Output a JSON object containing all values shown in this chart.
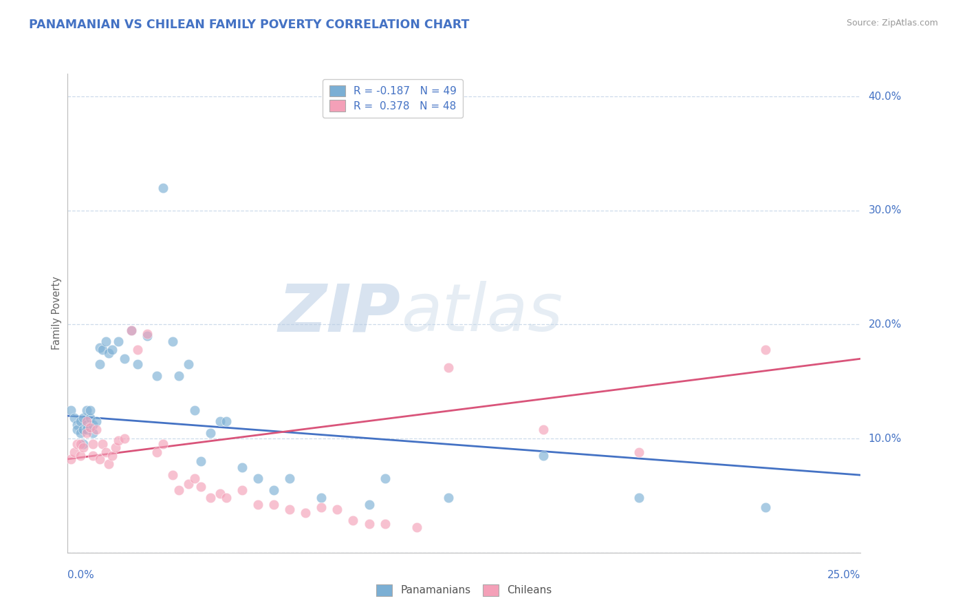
{
  "title": "PANAMANIAN VS CHILEAN FAMILY POVERTY CORRELATION CHART",
  "source": "Source: ZipAtlas.com",
  "ylabel": "Family Poverty",
  "xlim": [
    0.0,
    0.25
  ],
  "ylim": [
    0.0,
    0.42
  ],
  "yticks": [
    0.0,
    0.1,
    0.2,
    0.3,
    0.4
  ],
  "ytick_labels": [
    "",
    "10.0%",
    "20.0%",
    "30.0%",
    "40.0%"
  ],
  "xtick_labels": [
    "0.0%",
    "25.0%"
  ],
  "panamanian_color": "#7bafd4",
  "chilean_color": "#f4a0b8",
  "panamanian_trend_color": "#4472c4",
  "chilean_trend_color": "#d9547a",
  "title_color": "#4472c4",
  "source_color": "#999999",
  "label_color": "#4472c4",
  "grid_color": "#c8d8e8",
  "pan_trend_x0": 0.0,
  "pan_trend_y0": 0.12,
  "pan_trend_x1": 0.25,
  "pan_trend_y1": 0.068,
  "chi_trend_x0": 0.0,
  "chi_trend_y0": 0.082,
  "chi_trend_x1": 0.25,
  "chi_trend_y1": 0.17,
  "pan_x": [
    0.001,
    0.002,
    0.003,
    0.003,
    0.004,
    0.004,
    0.005,
    0.005,
    0.005,
    0.006,
    0.006,
    0.006,
    0.007,
    0.007,
    0.008,
    0.008,
    0.009,
    0.01,
    0.01,
    0.011,
    0.012,
    0.013,
    0.014,
    0.016,
    0.018,
    0.02,
    0.022,
    0.025,
    0.028,
    0.03,
    0.033,
    0.035,
    0.038,
    0.04,
    0.042,
    0.045,
    0.048,
    0.05,
    0.055,
    0.06,
    0.065,
    0.07,
    0.08,
    0.095,
    0.1,
    0.12,
    0.15,
    0.18,
    0.22
  ],
  "pan_y": [
    0.125,
    0.118,
    0.112,
    0.108,
    0.115,
    0.105,
    0.118,
    0.108,
    0.095,
    0.125,
    0.112,
    0.108,
    0.118,
    0.125,
    0.112,
    0.105,
    0.115,
    0.18,
    0.165,
    0.178,
    0.185,
    0.175,
    0.178,
    0.185,
    0.17,
    0.195,
    0.165,
    0.19,
    0.155,
    0.32,
    0.185,
    0.155,
    0.165,
    0.125,
    0.08,
    0.105,
    0.115,
    0.115,
    0.075,
    0.065,
    0.055,
    0.065,
    0.048,
    0.042,
    0.065,
    0.048,
    0.085,
    0.048,
    0.04
  ],
  "chi_x": [
    0.001,
    0.002,
    0.003,
    0.004,
    0.004,
    0.005,
    0.006,
    0.006,
    0.007,
    0.008,
    0.008,
    0.009,
    0.01,
    0.011,
    0.012,
    0.013,
    0.014,
    0.015,
    0.016,
    0.018,
    0.02,
    0.022,
    0.025,
    0.028,
    0.03,
    0.033,
    0.035,
    0.038,
    0.04,
    0.042,
    0.045,
    0.048,
    0.05,
    0.055,
    0.06,
    0.065,
    0.07,
    0.075,
    0.08,
    0.085,
    0.09,
    0.095,
    0.1,
    0.11,
    0.12,
    0.15,
    0.18,
    0.22
  ],
  "chi_y": [
    0.082,
    0.088,
    0.095,
    0.085,
    0.095,
    0.092,
    0.115,
    0.105,
    0.11,
    0.085,
    0.095,
    0.108,
    0.082,
    0.095,
    0.088,
    0.078,
    0.085,
    0.092,
    0.098,
    0.1,
    0.195,
    0.178,
    0.192,
    0.088,
    0.095,
    0.068,
    0.055,
    0.06,
    0.065,
    0.058,
    0.048,
    0.052,
    0.048,
    0.055,
    0.042,
    0.042,
    0.038,
    0.035,
    0.04,
    0.038,
    0.028,
    0.025,
    0.025,
    0.022,
    0.162,
    0.108,
    0.088,
    0.178
  ],
  "legend1_label": "R = -0.187   N = 49",
  "legend2_label": "R =  0.378   N = 48",
  "bottom_label1": "Panamanians",
  "bottom_label2": "Chileans",
  "watermark_zip": "ZIP",
  "watermark_atlas": "atlas"
}
